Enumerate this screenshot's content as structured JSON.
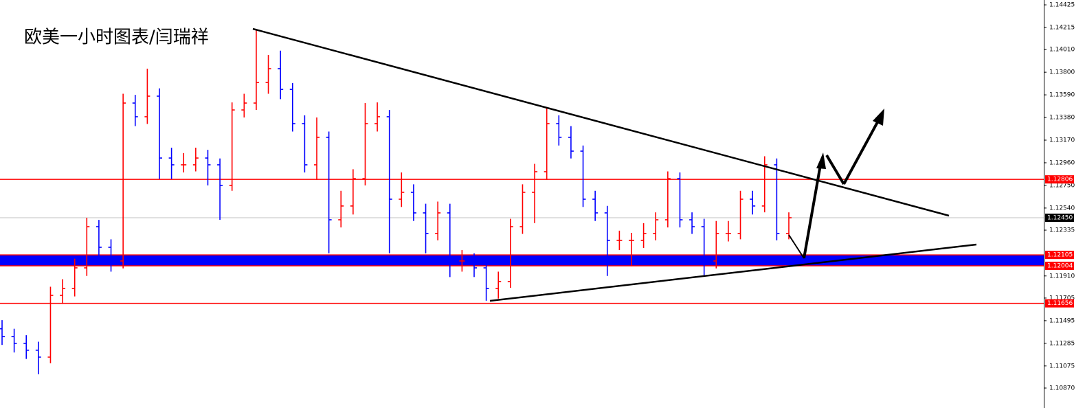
{
  "chart_data": {
    "type": "ohlc",
    "title": "欧美一小时图表/闫瑞祥",
    "up_color": "#ff0000",
    "down_color": "#0000ff",
    "open": [
      1.1142,
      1.11348,
      1.11285,
      1.11221,
      1.11157,
      1.1173,
      1.11794,
      1.11985,
      1.12367,
      1.12176,
      1.12049,
      1.13514,
      1.13387,
      1.13578,
      1.13004,
      1.12941,
      1.12941,
      1.13004,
      1.12941,
      1.1275,
      1.1345,
      1.13514,
      1.13705,
      1.13833,
      1.13641,
      1.13323,
      1.12941,
      1.13196,
      1.12431,
      1.12559,
      1.12813,
      1.13323,
      1.13387,
      1.12622,
      1.12686,
      1.12495,
      1.12304,
      1.12495,
      1.12049,
      1.12049,
      1.11985,
      1.11794,
      1.11858,
      1.12367,
      1.12686,
      1.12877,
      1.13323,
      1.13196,
      1.13068,
      1.12622,
      1.12495,
      1.1224,
      1.1224,
      1.1224,
      1.12304,
      1.12431,
      1.12813,
      1.12431,
      1.12367,
      1.12049,
      1.12304,
      1.12304,
      1.12622,
      1.12559,
      1.12941,
      1.12304
    ],
    "high": [
      1.115,
      1.1142,
      1.1136,
      1.113,
      1.1181,
      1.1188,
      1.1207,
      1.1245,
      1.1243,
      1.1225,
      1.136,
      1.1359,
      1.13833,
      1.1365,
      1.131,
      1.1305,
      1.131,
      1.1308,
      1.13,
      1.1352,
      1.136,
      1.14202,
      1.1396,
      1.14,
      1.137,
      1.134,
      1.1338,
      1.1325,
      1.127,
      1.129,
      1.13514,
      1.1352,
      1.1345,
      1.1287,
      1.1276,
      1.1258,
      1.126,
      1.1258,
      1.1215,
      1.1212,
      1.1205,
      1.1195,
      1.1244,
      1.1276,
      1.1295,
      1.1347,
      1.134,
      1.133,
      1.1312,
      1.127,
      1.1256,
      1.1233,
      1.1231,
      1.124,
      1.125,
      1.1288,
      1.1287,
      1.125,
      1.1244,
      1.1242,
      1.1242,
      1.127,
      1.127,
      1.1302,
      1.13,
      1.125
    ],
    "low": [
      1.1127,
      1.112,
      1.1114,
      1.10998,
      1.111,
      1.1165,
      1.1172,
      1.1191,
      1.121,
      1.1195,
      1.1198,
      1.133,
      1.1332,
      1.1281,
      1.1281,
      1.1287,
      1.1288,
      1.1275,
      1.12431,
      1.127,
      1.1338,
      1.1345,
      1.136,
      1.1355,
      1.1325,
      1.1287,
      1.128,
      1.1212,
      1.1236,
      1.1248,
      1.1275,
      1.1325,
      1.1212,
      1.1255,
      1.1242,
      1.1212,
      1.1224,
      1.119,
      1.1195,
      1.119,
      1.1168,
      1.117,
      1.118,
      1.123,
      1.124,
      1.128,
      1.1312,
      1.13,
      1.1255,
      1.1242,
      1.1191,
      1.1215,
      1.12,
      1.1217,
      1.1224,
      1.1236,
      1.1236,
      1.123,
      1.1191,
      1.1198,
      1.1223,
      1.1225,
      1.1248,
      1.125,
      1.1224,
      1.1225
    ],
    "close": [
      1.11348,
      1.11285,
      1.11221,
      1.11157,
      1.1173,
      1.11794,
      1.11985,
      1.12367,
      1.12176,
      1.12049,
      1.13514,
      1.13387,
      1.13578,
      1.13004,
      1.12941,
      1.12941,
      1.13004,
      1.12941,
      1.1275,
      1.1345,
      1.13514,
      1.13705,
      1.13833,
      1.13641,
      1.13323,
      1.12941,
      1.13196,
      1.12431,
      1.12559,
      1.12813,
      1.13323,
      1.13387,
      1.12622,
      1.12686,
      1.12495,
      1.12304,
      1.12495,
      1.12049,
      1.12049,
      1.11985,
      1.11794,
      1.11858,
      1.12367,
      1.12686,
      1.12877,
      1.13323,
      1.13196,
      1.13068,
      1.12622,
      1.12495,
      1.1224,
      1.1224,
      1.1224,
      1.12304,
      1.12431,
      1.12813,
      1.12431,
      1.12367,
      1.12049,
      1.12304,
      1.12304,
      1.12622,
      1.12559,
      1.12941,
      1.12304,
      1.1245
    ],
    "ylim": [
      1.10685,
      1.1447
    ],
    "yticks": [
      1.14425,
      1.14215,
      {
        "value": 1.1401,
        "label": "1.14010"
      },
      {
        "value": 1.138,
        "label": "1.13800"
      },
      {
        "value": 1.1359,
        "label": "1.13590"
      },
      {
        "value": 1.1338,
        "label": "1.13380"
      },
      {
        "value": 1.1317,
        "label": "1.13170"
      },
      {
        "value": 1.1296,
        "label": "1.12960"
      },
      {
        "value": 1.1275,
        "label": "1.12750"
      },
      {
        "value": 1.1254,
        "label": "1.12540"
      },
      1.12335,
      {
        "value": 1.1191,
        "label": "1.11910"
      },
      1.11705,
      1.11495,
      1.11285,
      1.11075,
      {
        "value": 1.1087,
        "label": "1.10870"
      }
    ],
    "levels": [
      1.12806,
      1.12105,
      1.12004,
      1.11656
    ],
    "level_color": "#ff0000",
    "zone_color": "#0000ff",
    "last_price": {
      "value": 1.1245,
      "label": "1.12450"
    }
  }
}
